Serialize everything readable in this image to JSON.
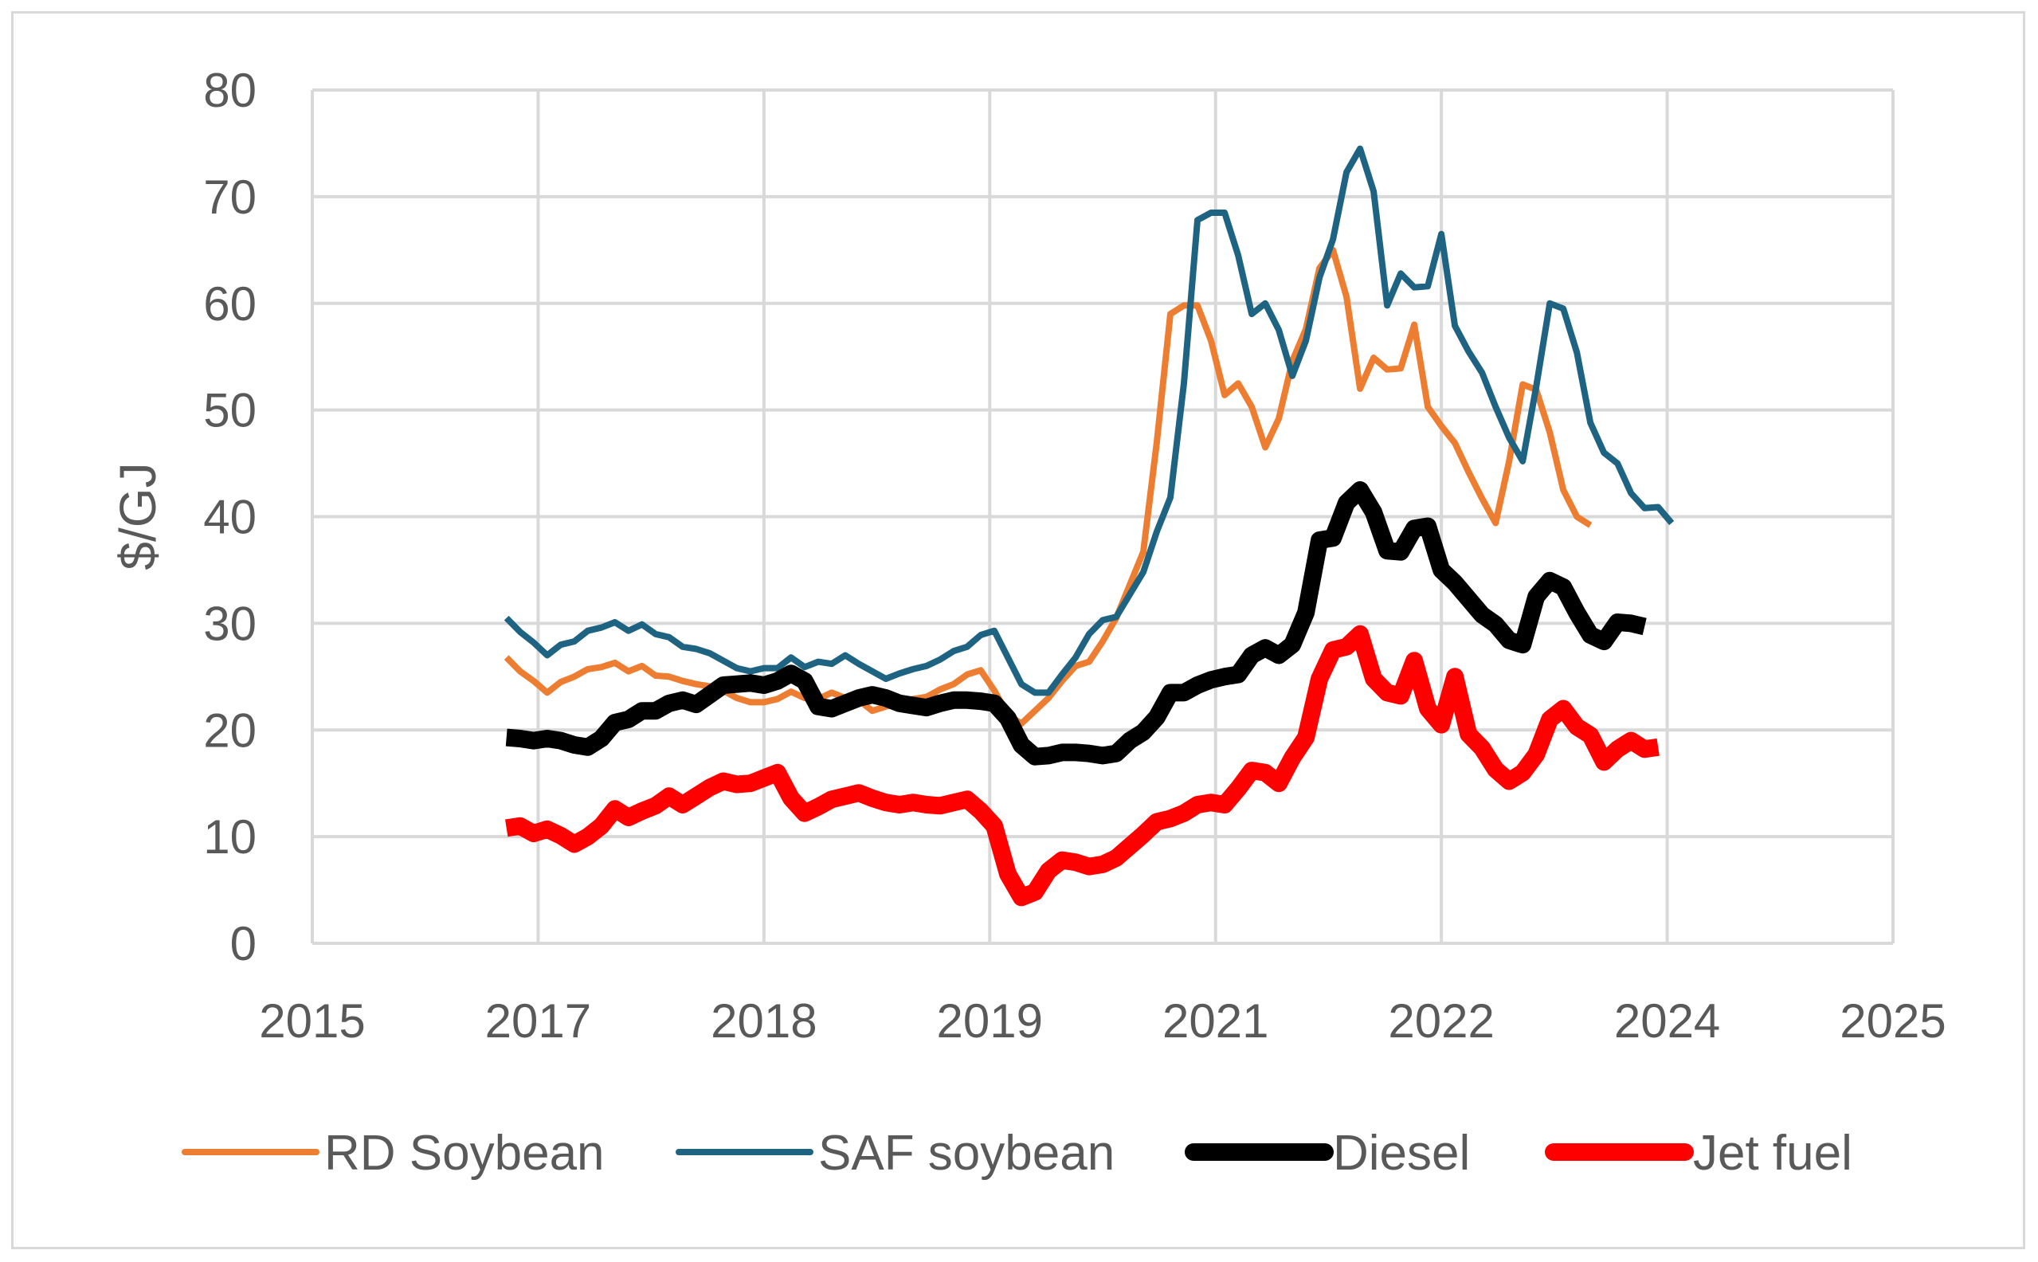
{
  "chart_data": {
    "type": "line",
    "title": "",
    "xlabel": "",
    "ylabel": "$/GJ",
    "ylim": [
      0,
      80
    ],
    "yticks": [
      "0",
      "10",
      "20",
      "30",
      "40",
      "50",
      "60",
      "70",
      "80"
    ],
    "xticks": [
      "2015",
      "2017",
      "2018",
      "2019",
      "2021",
      "2022",
      "2024",
      "2025"
    ],
    "xlim_index": [
      0,
      7
    ],
    "grid": true,
    "legend_position": "bottom",
    "series": [
      {
        "name": "RD Soybean",
        "color": "#ed7d31",
        "width": "thin",
        "x": [
          0.86,
          0.92,
          0.98,
          1.04,
          1.1,
          1.16,
          1.22,
          1.28,
          1.34,
          1.4,
          1.46,
          1.52,
          1.58,
          1.64,
          1.7,
          1.76,
          1.82,
          1.88,
          1.94,
          2.0,
          2.06,
          2.12,
          2.18,
          2.24,
          2.3,
          2.36,
          2.42,
          2.48,
          2.54,
          2.6,
          2.66,
          2.72,
          2.78,
          2.84,
          2.9,
          2.96,
          3.02,
          3.08,
          3.14,
          3.2,
          3.26,
          3.32,
          3.38,
          3.44,
          3.5,
          3.56,
          3.62,
          3.68,
          3.74,
          3.8,
          3.86,
          3.92,
          3.98,
          4.04,
          4.1,
          4.16,
          4.22,
          4.28,
          4.34,
          4.4,
          4.46,
          4.52,
          4.58,
          4.64,
          4.7,
          4.76,
          4.82,
          4.88,
          4.94,
          5.0,
          5.06,
          5.12,
          5.18,
          5.24,
          5.3,
          5.36,
          5.42,
          5.48,
          5.54,
          5.6,
          5.66,
          5.72,
          5.78,
          5.84,
          5.9,
          5.96,
          6.02,
          6.08,
          6.12
        ],
        "values": [
          26.8,
          25.5,
          24.6,
          23.5,
          24.5,
          25.0,
          25.7,
          25.9,
          26.3,
          25.5,
          26.0,
          25.1,
          25.0,
          24.6,
          24.3,
          24.1,
          23.7,
          23.0,
          22.6,
          22.6,
          22.9,
          23.6,
          23.0,
          22.9,
          23.5,
          23.0,
          22.8,
          21.8,
          22.2,
          22.6,
          22.9,
          23.1,
          23.8,
          24.3,
          25.2,
          25.6,
          23.7,
          21.4,
          20.6,
          21.8,
          23.0,
          24.6,
          26.0,
          26.4,
          28.3,
          30.5,
          33.6,
          36.7,
          47.0,
          59.0,
          59.8,
          59.8,
          56.5,
          51.4,
          52.5,
          50.3,
          46.5,
          49.2,
          54.6,
          57.6,
          63.3,
          65.0,
          60.6,
          52.0,
          54.9,
          53.8,
          53.9,
          58.0,
          50.3,
          48.5,
          46.9,
          44.2,
          41.7,
          39.4,
          45.2,
          52.4,
          51.9,
          47.9,
          42.5,
          40.0,
          39.2,
          null,
          null,
          null,
          null,
          null,
          null,
          null,
          null
        ]
      },
      {
        "name": "SAF soybean",
        "color": "#1f6383",
        "width": "thin",
        "x": [
          0.86,
          0.92,
          0.98,
          1.04,
          1.1,
          1.16,
          1.22,
          1.28,
          1.34,
          1.4,
          1.46,
          1.52,
          1.58,
          1.64,
          1.7,
          1.76,
          1.82,
          1.88,
          1.94,
          2.0,
          2.06,
          2.12,
          2.18,
          2.24,
          2.3,
          2.36,
          2.42,
          2.48,
          2.54,
          2.6,
          2.66,
          2.72,
          2.78,
          2.84,
          2.9,
          2.96,
          3.02,
          3.08,
          3.14,
          3.2,
          3.26,
          3.32,
          3.38,
          3.44,
          3.5,
          3.56,
          3.62,
          3.68,
          3.74,
          3.8,
          3.86,
          3.92,
          3.98,
          4.04,
          4.1,
          4.16,
          4.22,
          4.28,
          4.34,
          4.4,
          4.46,
          4.52,
          4.58,
          4.64,
          4.7,
          4.76,
          4.82,
          4.88,
          4.94,
          5.0,
          5.06,
          5.12,
          5.18,
          5.24,
          5.3,
          5.36,
          5.42,
          5.48,
          5.54,
          5.6,
          5.66,
          5.72,
          5.78,
          5.84,
          5.9,
          5.96,
          6.02,
          6.08,
          6.12
        ],
        "values": [
          30.5,
          29.2,
          28.2,
          27.0,
          28.0,
          28.3,
          29.3,
          29.6,
          30.1,
          29.3,
          29.9,
          29.0,
          28.7,
          27.8,
          27.6,
          27.2,
          26.5,
          25.8,
          25.5,
          25.8,
          25.8,
          26.8,
          25.9,
          26.4,
          26.2,
          27.0,
          26.2,
          25.5,
          24.8,
          25.3,
          25.7,
          26.0,
          26.6,
          27.4,
          27.8,
          28.9,
          29.3,
          26.8,
          24.3,
          23.5,
          23.5,
          25.2,
          26.8,
          29.0,
          30.3,
          30.6,
          32.7,
          34.8,
          38.6,
          41.8,
          52.5,
          67.8,
          68.5,
          68.5,
          64.5,
          59.0,
          60.0,
          57.5,
          53.2,
          56.5,
          62.4,
          66.0,
          72.3,
          74.5,
          70.5,
          59.8,
          62.8,
          61.5,
          61.6,
          66.5,
          57.9,
          55.5,
          53.5,
          50.3,
          47.4,
          45.2,
          52.2,
          60.0,
          59.5,
          55.4,
          48.8,
          46.0,
          45.0,
          42.2,
          40.8,
          40.9,
          39.4,
          null,
          null
        ]
      },
      {
        "name": "Diesel",
        "color": "#000000",
        "width": "thick",
        "x": [
          0.86,
          0.92,
          0.98,
          1.04,
          1.1,
          1.16,
          1.22,
          1.28,
          1.34,
          1.4,
          1.46,
          1.52,
          1.58,
          1.64,
          1.7,
          1.76,
          1.82,
          1.88,
          1.94,
          2.0,
          2.06,
          2.12,
          2.18,
          2.24,
          2.3,
          2.36,
          2.42,
          2.48,
          2.54,
          2.6,
          2.66,
          2.72,
          2.78,
          2.84,
          2.9,
          2.96,
          3.02,
          3.08,
          3.14,
          3.2,
          3.26,
          3.32,
          3.38,
          3.44,
          3.5,
          3.56,
          3.62,
          3.68,
          3.74,
          3.8,
          3.86,
          3.92,
          3.98,
          4.04,
          4.1,
          4.16,
          4.22,
          4.28,
          4.34,
          4.4,
          4.46,
          4.52,
          4.58,
          4.64,
          4.7,
          4.76,
          4.82,
          4.88,
          4.94,
          5.0,
          5.06,
          5.12,
          5.18,
          5.24,
          5.3,
          5.36,
          5.42,
          5.48,
          5.54,
          5.6,
          5.66,
          5.72,
          5.78,
          5.84,
          5.9,
          5.96,
          6.02,
          6.08,
          6.12
        ],
        "values": [
          19.3,
          19.2,
          19.0,
          19.2,
          19.0,
          18.6,
          18.4,
          19.2,
          20.7,
          21.0,
          21.8,
          21.8,
          22.5,
          22.8,
          22.4,
          23.3,
          24.2,
          24.3,
          24.4,
          24.2,
          24.6,
          25.3,
          24.6,
          22.2,
          22.0,
          22.5,
          23.0,
          23.3,
          23.0,
          22.5,
          22.3,
          22.1,
          22.5,
          22.8,
          22.8,
          22.7,
          22.5,
          21.1,
          18.6,
          17.5,
          17.6,
          17.9,
          17.9,
          17.8,
          17.6,
          17.8,
          19.0,
          19.8,
          21.2,
          23.5,
          23.5,
          24.2,
          24.7,
          25.0,
          25.2,
          27.0,
          27.7,
          27.0,
          28.0,
          31.0,
          37.8,
          38.0,
          41.3,
          42.5,
          40.4,
          36.8,
          36.7,
          38.9,
          39.1,
          35.0,
          33.8,
          32.3,
          30.8,
          29.9,
          28.4,
          28.0,
          32.5,
          34.0,
          33.4,
          31.0,
          28.9,
          28.3,
          30.1,
          30.0,
          29.7,
          null,
          null,
          null,
          null
        ]
      },
      {
        "name": "Jet fuel",
        "color": "#ff0000",
        "width": "thick",
        "x": [
          0.86,
          0.92,
          0.98,
          1.04,
          1.1,
          1.16,
          1.22,
          1.28,
          1.34,
          1.4,
          1.46,
          1.52,
          1.58,
          1.64,
          1.7,
          1.76,
          1.82,
          1.88,
          1.94,
          2.0,
          2.06,
          2.12,
          2.18,
          2.24,
          2.3,
          2.36,
          2.42,
          2.48,
          2.54,
          2.6,
          2.66,
          2.72,
          2.78,
          2.84,
          2.9,
          2.96,
          3.02,
          3.08,
          3.14,
          3.2,
          3.26,
          3.32,
          3.38,
          3.44,
          3.5,
          3.56,
          3.62,
          3.68,
          3.74,
          3.8,
          3.86,
          3.92,
          3.98,
          4.04,
          4.1,
          4.16,
          4.22,
          4.28,
          4.34,
          4.4,
          4.46,
          4.52,
          4.58,
          4.64,
          4.7,
          4.76,
          4.82,
          4.88,
          4.94,
          5.0,
          5.06,
          5.12,
          5.18,
          5.24,
          5.3,
          5.36,
          5.42,
          5.48,
          5.54,
          5.6,
          5.66,
          5.72,
          5.78,
          5.84,
          5.9,
          5.96,
          6.02,
          6.08,
          6.12
        ],
        "values": [
          10.8,
          11.0,
          10.3,
          10.7,
          10.1,
          9.3,
          10.0,
          11.0,
          12.6,
          11.8,
          12.4,
          12.9,
          13.8,
          13.0,
          13.8,
          14.6,
          15.2,
          14.9,
          15.0,
          15.5,
          16.0,
          13.6,
          12.2,
          12.8,
          13.5,
          13.8,
          14.1,
          13.6,
          13.2,
          13.0,
          13.2,
          13.0,
          12.9,
          13.2,
          13.5,
          12.4,
          11.0,
          6.5,
          4.3,
          4.8,
          6.8,
          7.8,
          7.6,
          7.2,
          7.4,
          8.0,
          9.1,
          10.2,
          11.4,
          11.7,
          12.2,
          13.0,
          13.2,
          13.0,
          14.5,
          16.2,
          16.0,
          15.0,
          17.4,
          19.3,
          24.8,
          27.5,
          27.8,
          29.0,
          24.8,
          23.5,
          23.2,
          26.5,
          22.0,
          20.5,
          25.0,
          19.6,
          18.3,
          16.3,
          15.2,
          16.0,
          17.7,
          21.0,
          22.0,
          20.3,
          19.5,
          17.0,
          18.2,
          19.0,
          18.2,
          18.4,
          null,
          null,
          null
        ]
      }
    ]
  },
  "legend": {
    "items": [
      "RD Soybean",
      "SAF soybean",
      "Diesel",
      "Jet fuel"
    ]
  }
}
